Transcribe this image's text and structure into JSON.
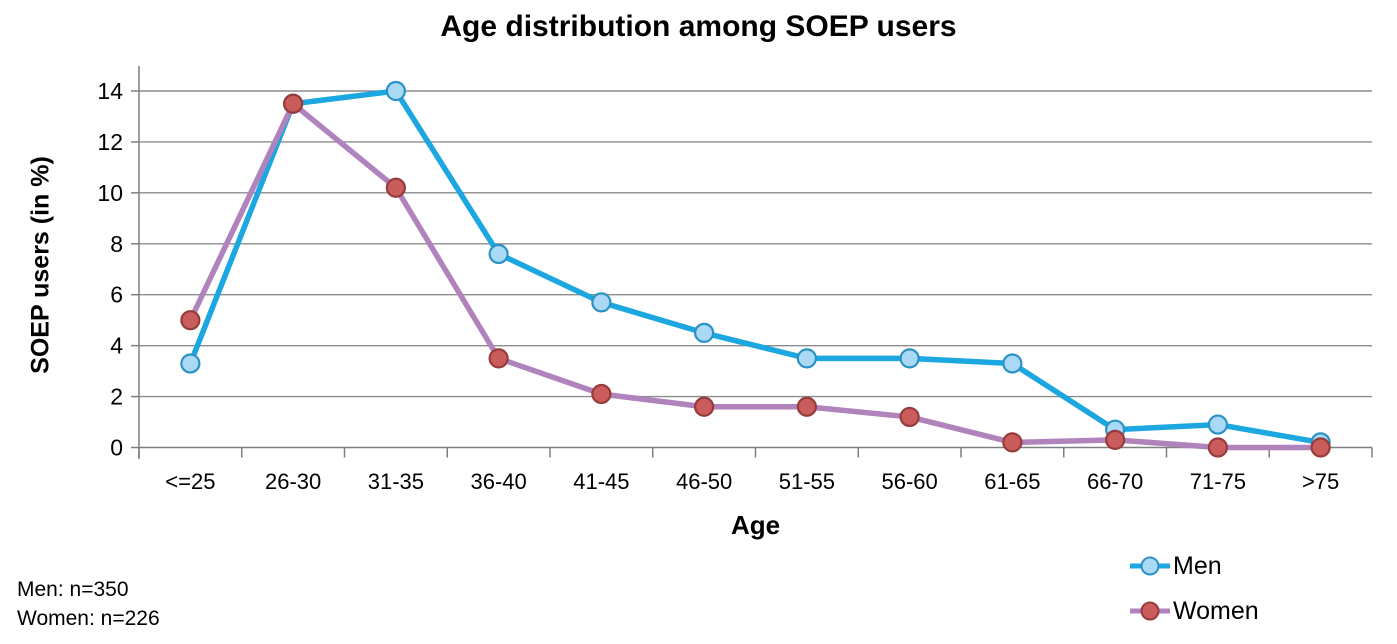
{
  "chart": {
    "title": "Age distribution among SOEP users",
    "ylabel": "SOEP users (in %)",
    "xlabel": "Age"
  },
  "footnotes": {
    "men": "Men: n=350",
    "women": "Women: n=226"
  },
  "colors": {
    "gridline": "#8C8C8C",
    "axis": "#7F7F7F",
    "text": "#000000"
  },
  "chart_data": {
    "type": "line",
    "title": "Age distribution among SOEP users",
    "xlabel": "Age",
    "ylabel": "SOEP users (in %)",
    "categories": [
      "<=25",
      "26-30",
      "31-35",
      "36-40",
      "41-45",
      "46-50",
      "51-55",
      "56-60",
      "61-65",
      "66-70",
      "71-75",
      ">75"
    ],
    "series": [
      {
        "name": "Men",
        "values": [
          3.3,
          13.5,
          14.0,
          7.6,
          5.7,
          4.5,
          3.5,
          3.5,
          3.3,
          0.7,
          0.9,
          0.2
        ],
        "line_color": "#1CA7E0",
        "marker_fill": "#A9D9F5",
        "marker_stroke": "#2B92C5"
      },
      {
        "name": "Women",
        "values": [
          5.0,
          13.5,
          10.2,
          3.5,
          2.1,
          1.6,
          1.6,
          1.2,
          0.2,
          0.3,
          0.0,
          0.0
        ],
        "line_color": "#B183BD",
        "marker_fill": "#CB5C5C",
        "marker_stroke": "#963C3C"
      }
    ],
    "ylim": [
      0,
      14
    ],
    "yticks": [
      0,
      2,
      4,
      6,
      8,
      10,
      12,
      14
    ],
    "grid": "horizontal",
    "legend_position": "bottom-right",
    "annotations": [
      "Men: n=350",
      "Women: n=226"
    ]
  }
}
